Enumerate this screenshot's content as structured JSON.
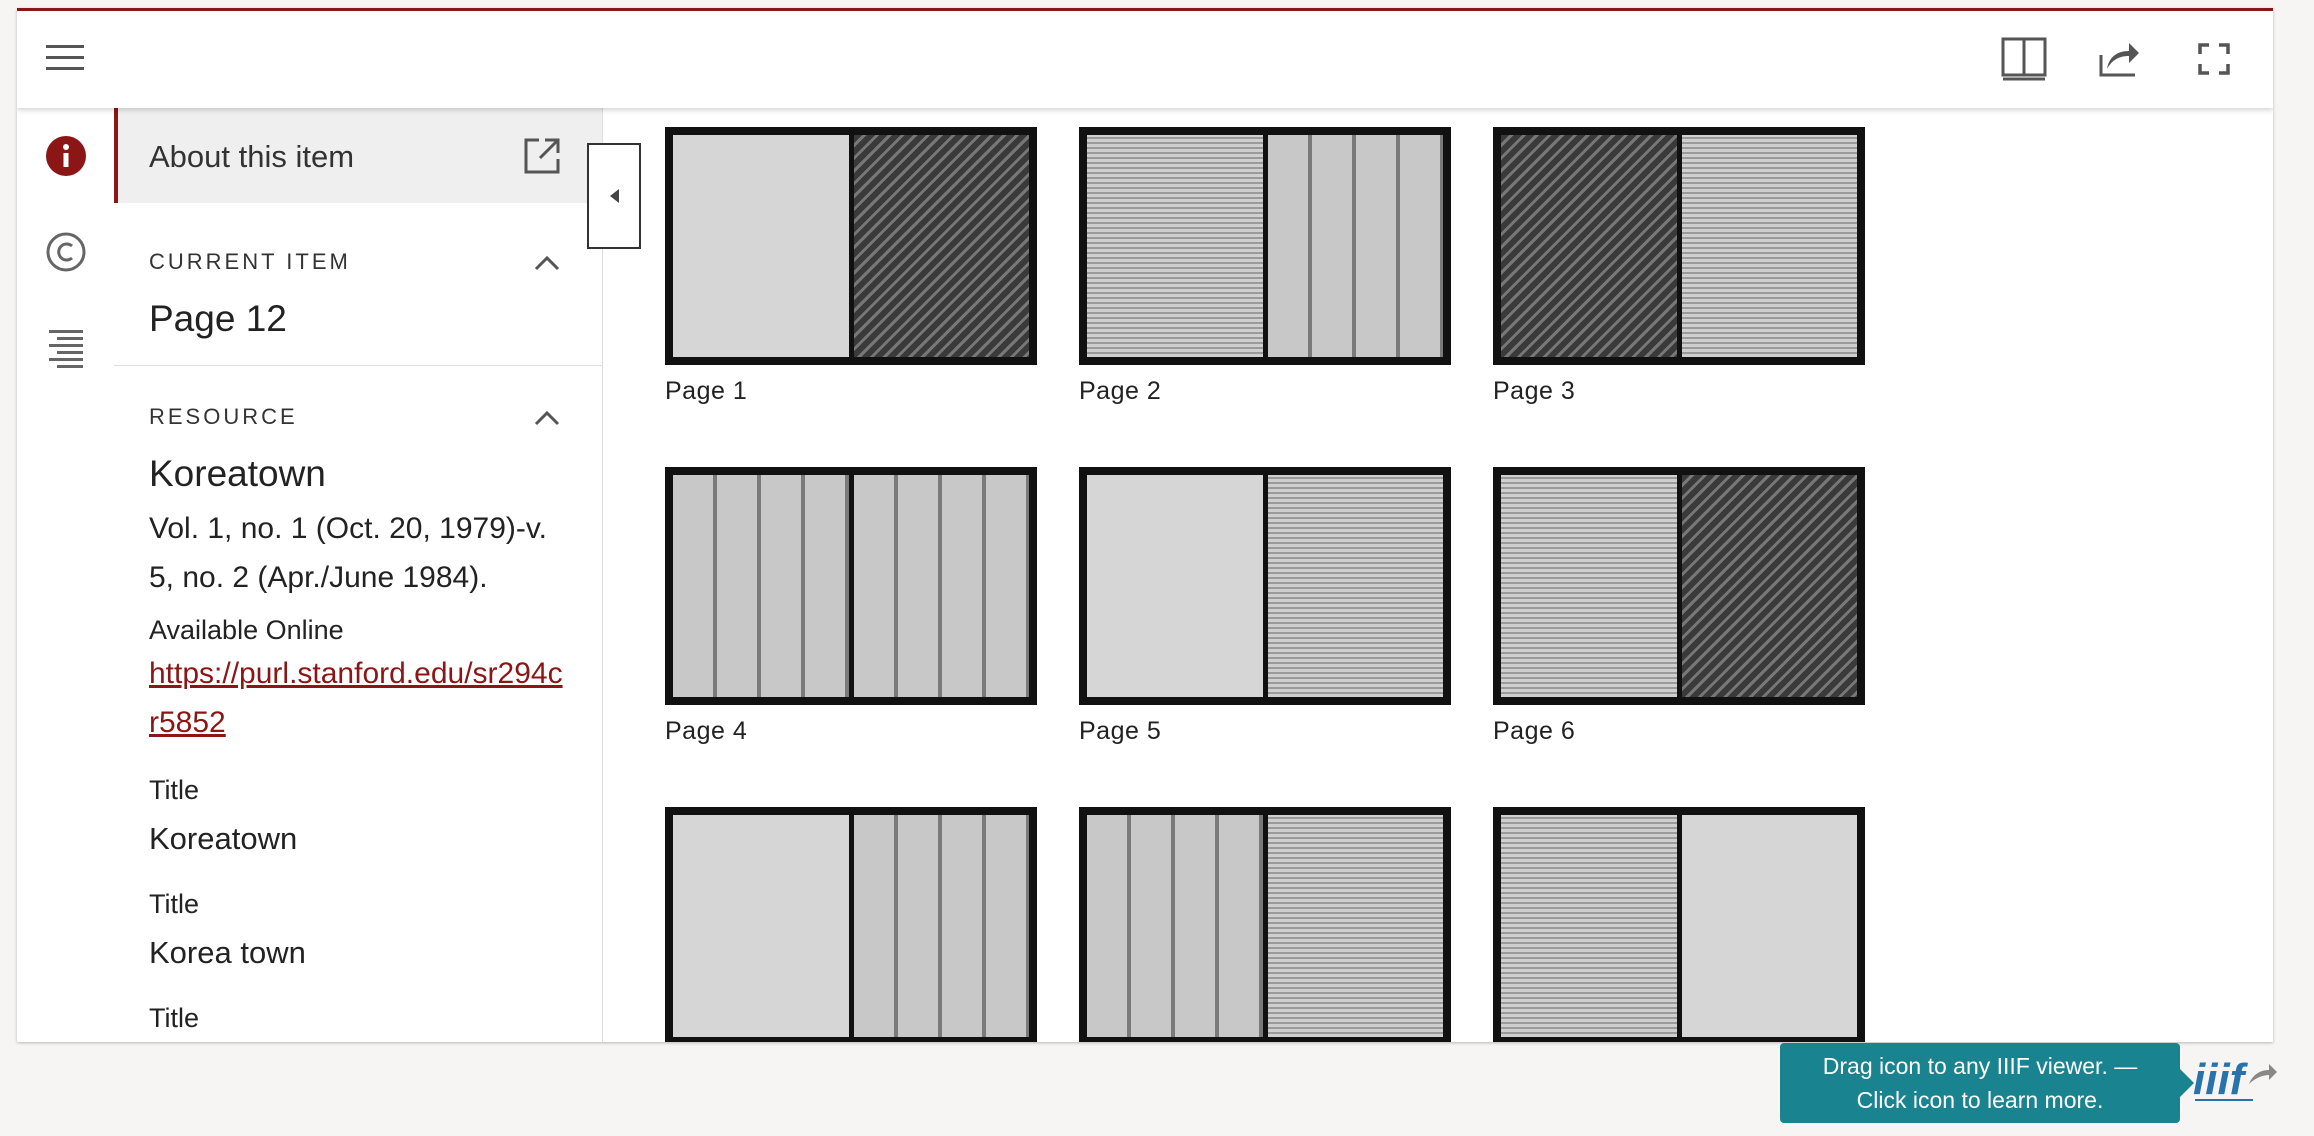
{
  "colors": {
    "accent": "#8c1515",
    "tooltip_bg": "#1a8390"
  },
  "toolbar": {
    "menu_icon": "hamburger-menu-icon",
    "view_icon": "book-view-icon",
    "share_icon": "share-icon",
    "fullscreen_icon": "fullscreen-icon"
  },
  "rail": {
    "icons": [
      "info-icon",
      "copyright-icon",
      "contents-list-icon"
    ]
  },
  "panel": {
    "about_title": "About this item",
    "current_item": {
      "label": "CURRENT ITEM",
      "value": "Page 12"
    },
    "resource": {
      "label": "RESOURCE",
      "title": "Koreatown",
      "description": "Vol. 1, no. 1 (Oct. 20, 1979)-v. 5, no. 2 (Apr./June 1984).",
      "available_label": "Available Online",
      "link": "https://purl.stanford.edu/sr294cr5852"
    },
    "metadata": [
      {
        "label": "Title",
        "value": "Koreatown"
      },
      {
        "label": "Title",
        "value": "Korea town"
      },
      {
        "label": "Title",
        "value": ""
      }
    ]
  },
  "gallery": {
    "pages": [
      "Page 1",
      "Page 2",
      "Page 3",
      "Page 4",
      "Page 5",
      "Page 6",
      "",
      "",
      ""
    ]
  },
  "iiif": {
    "tooltip_line1": "Drag icon to any IIIF viewer. —",
    "tooltip_line2": "Click icon to learn more.",
    "logo_text": "iiif"
  }
}
